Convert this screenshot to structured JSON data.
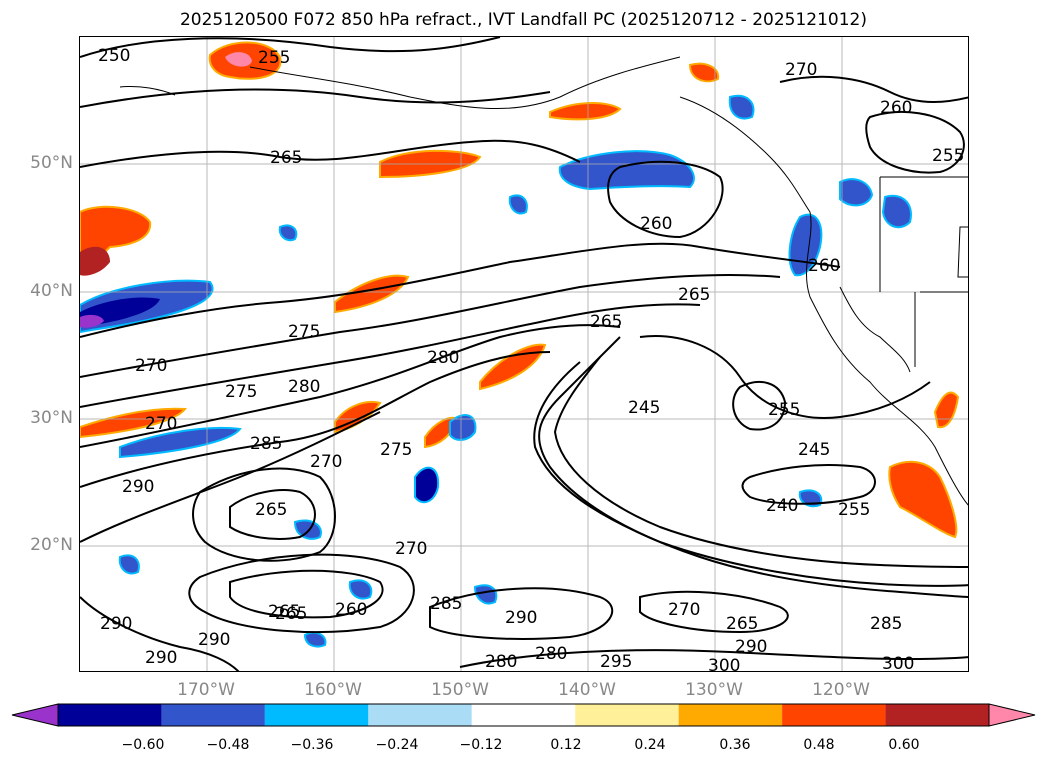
{
  "title": "2025120500 F072 850 hPa refract., IVT Landfall PC (2025120712 - 2025121012)",
  "lat_labels": [
    "50°N",
    "40°N",
    "30°N",
    "20°N"
  ],
  "lon_labels": [
    "170°W",
    "160°W",
    "150°W",
    "140°W",
    "130°W",
    "120°W"
  ],
  "contour_labels": [
    "250",
    "255",
    "265",
    "270",
    "260",
    "265",
    "255",
    "260",
    "265",
    "275",
    "270",
    "280",
    "270",
    "275",
    "280",
    "285",
    "260",
    "265",
    "290",
    "270",
    "275",
    "245",
    "255",
    "245",
    "240",
    "255",
    "265",
    "270",
    "265",
    "260",
    "285",
    "290",
    "280",
    "280",
    "290",
    "290",
    "290",
    "270",
    "265",
    "290",
    "285",
    "300",
    "300",
    "295"
  ],
  "colorbar": {
    "ticks": [
      "−0.60",
      "−0.48",
      "−0.36",
      "−0.24",
      "−0.12",
      "0.12",
      "0.24",
      "0.36",
      "0.48",
      "0.60"
    ],
    "colors": [
      "#9933cc",
      "#000099",
      "#3355cc",
      "#00bbff",
      "#aaddf5",
      "#ffffff",
      "#fff099",
      "#ffaa00",
      "#ff4400",
      "#b22222",
      "#ff88aa"
    ]
  },
  "map": {
    "lon_range": [
      "-180",
      "-110"
    ],
    "lat_range": [
      "10",
      "60"
    ],
    "gridlines": true
  }
}
